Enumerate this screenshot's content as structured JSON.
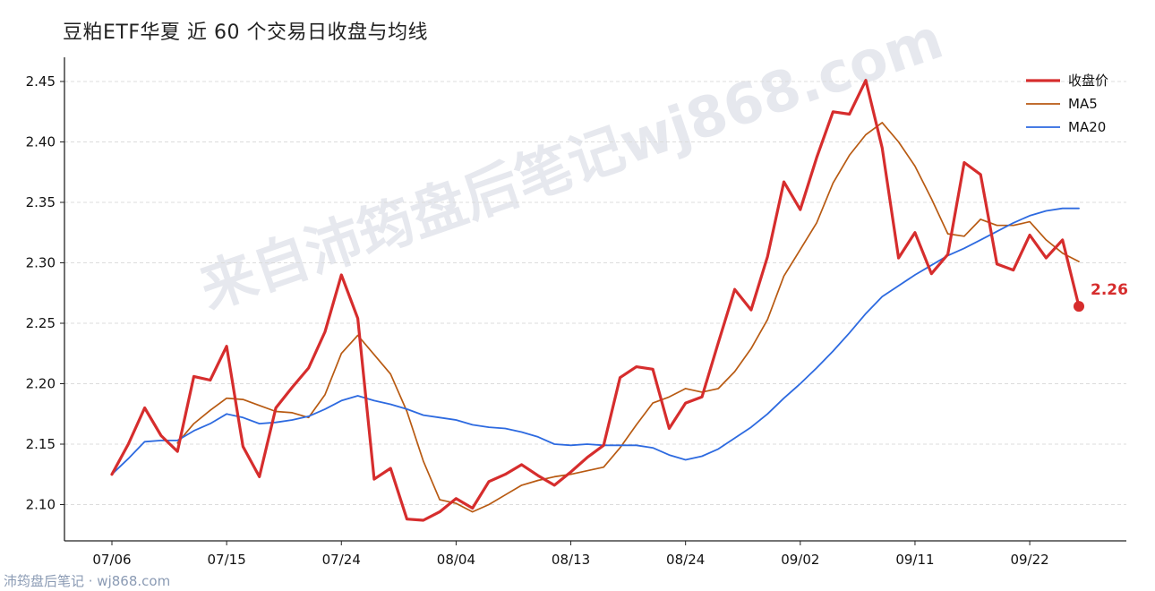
{
  "chart_data": {
    "type": "line",
    "title": "豆粕ETF华夏 近 60 个交易日收盘与均线",
    "xlabel": "",
    "ylabel": "",
    "ylim": [
      2.07,
      2.47
    ],
    "y_ticks": [
      2.1,
      2.15,
      2.2,
      2.25,
      2.3,
      2.35,
      2.4,
      2.45
    ],
    "x_ticks": [
      "07/06",
      "07/15",
      "07/24",
      "08/04",
      "08/13",
      "08/24",
      "09/02",
      "09/11",
      "09/22"
    ],
    "x_tick_index": [
      0,
      7,
      14,
      21,
      28,
      35,
      42,
      49,
      56
    ],
    "grid": "horizontal dashed",
    "legend_position": "top-right",
    "series": [
      {
        "name": "收盘价",
        "color": "#d62d2d",
        "values": [
          2.125,
          2.15,
          2.18,
          2.157,
          2.144,
          2.206,
          2.203,
          2.231,
          2.148,
          2.123,
          2.18,
          2.197,
          2.213,
          2.243,
          2.29,
          2.254,
          2.121,
          2.13,
          2.088,
          2.087,
          2.094,
          2.105,
          2.097,
          2.119,
          2.125,
          2.133,
          2.124,
          2.116,
          2.127,
          2.139,
          2.149,
          2.205,
          2.214,
          2.212,
          2.163,
          2.184,
          2.189,
          2.234,
          2.278,
          2.261,
          2.305,
          2.367,
          2.344,
          2.387,
          2.425,
          2.423,
          2.451,
          2.395,
          2.304,
          2.325,
          2.291,
          2.307,
          2.383,
          2.373,
          2.299,
          2.294,
          2.323,
          2.304,
          2.319,
          2.264
        ]
      },
      {
        "name": "MA5",
        "color": "#b85a12",
        "values": [
          null,
          null,
          null,
          null,
          2.151,
          2.167,
          2.178,
          2.188,
          2.187,
          2.182,
          2.177,
          2.176,
          2.172,
          2.191,
          2.225,
          2.24,
          2.224,
          2.208,
          2.177,
          2.136,
          2.104,
          2.101,
          2.094,
          2.1,
          2.108,
          2.116,
          2.12,
          2.123,
          2.125,
          2.128,
          2.131,
          2.147,
          2.166,
          2.184,
          2.189,
          2.196,
          2.193,
          2.196,
          2.21,
          2.229,
          2.253,
          2.289,
          2.311,
          2.333,
          2.366,
          2.389,
          2.406,
          2.416,
          2.4,
          2.38,
          2.353,
          2.324,
          2.322,
          2.336,
          2.331,
          2.331,
          2.334,
          2.319,
          2.308,
          2.301
        ]
      },
      {
        "name": "MA20",
        "color": "#2d6ae0",
        "values": [
          2.125,
          2.138,
          2.152,
          2.153,
          2.153,
          2.161,
          2.167,
          2.175,
          2.172,
          2.167,
          2.168,
          2.17,
          2.173,
          2.179,
          2.186,
          2.19,
          2.186,
          2.183,
          2.179,
          2.174,
          2.172,
          2.17,
          2.166,
          2.164,
          2.163,
          2.16,
          2.156,
          2.15,
          2.149,
          2.15,
          2.149,
          2.149,
          2.149,
          2.147,
          2.141,
          2.137,
          2.14,
          2.146,
          2.155,
          2.164,
          2.175,
          2.188,
          2.2,
          2.213,
          2.227,
          2.242,
          2.258,
          2.272,
          2.281,
          2.29,
          2.298,
          2.306,
          2.312,
          2.319,
          2.326,
          2.333,
          2.339,
          2.343,
          2.345,
          2.345
        ]
      }
    ],
    "end_label": "2.26"
  },
  "watermark": "来自沛筠盘后笔记wj868.com",
  "footer": "沛筠盘后笔记 · wj868.com"
}
